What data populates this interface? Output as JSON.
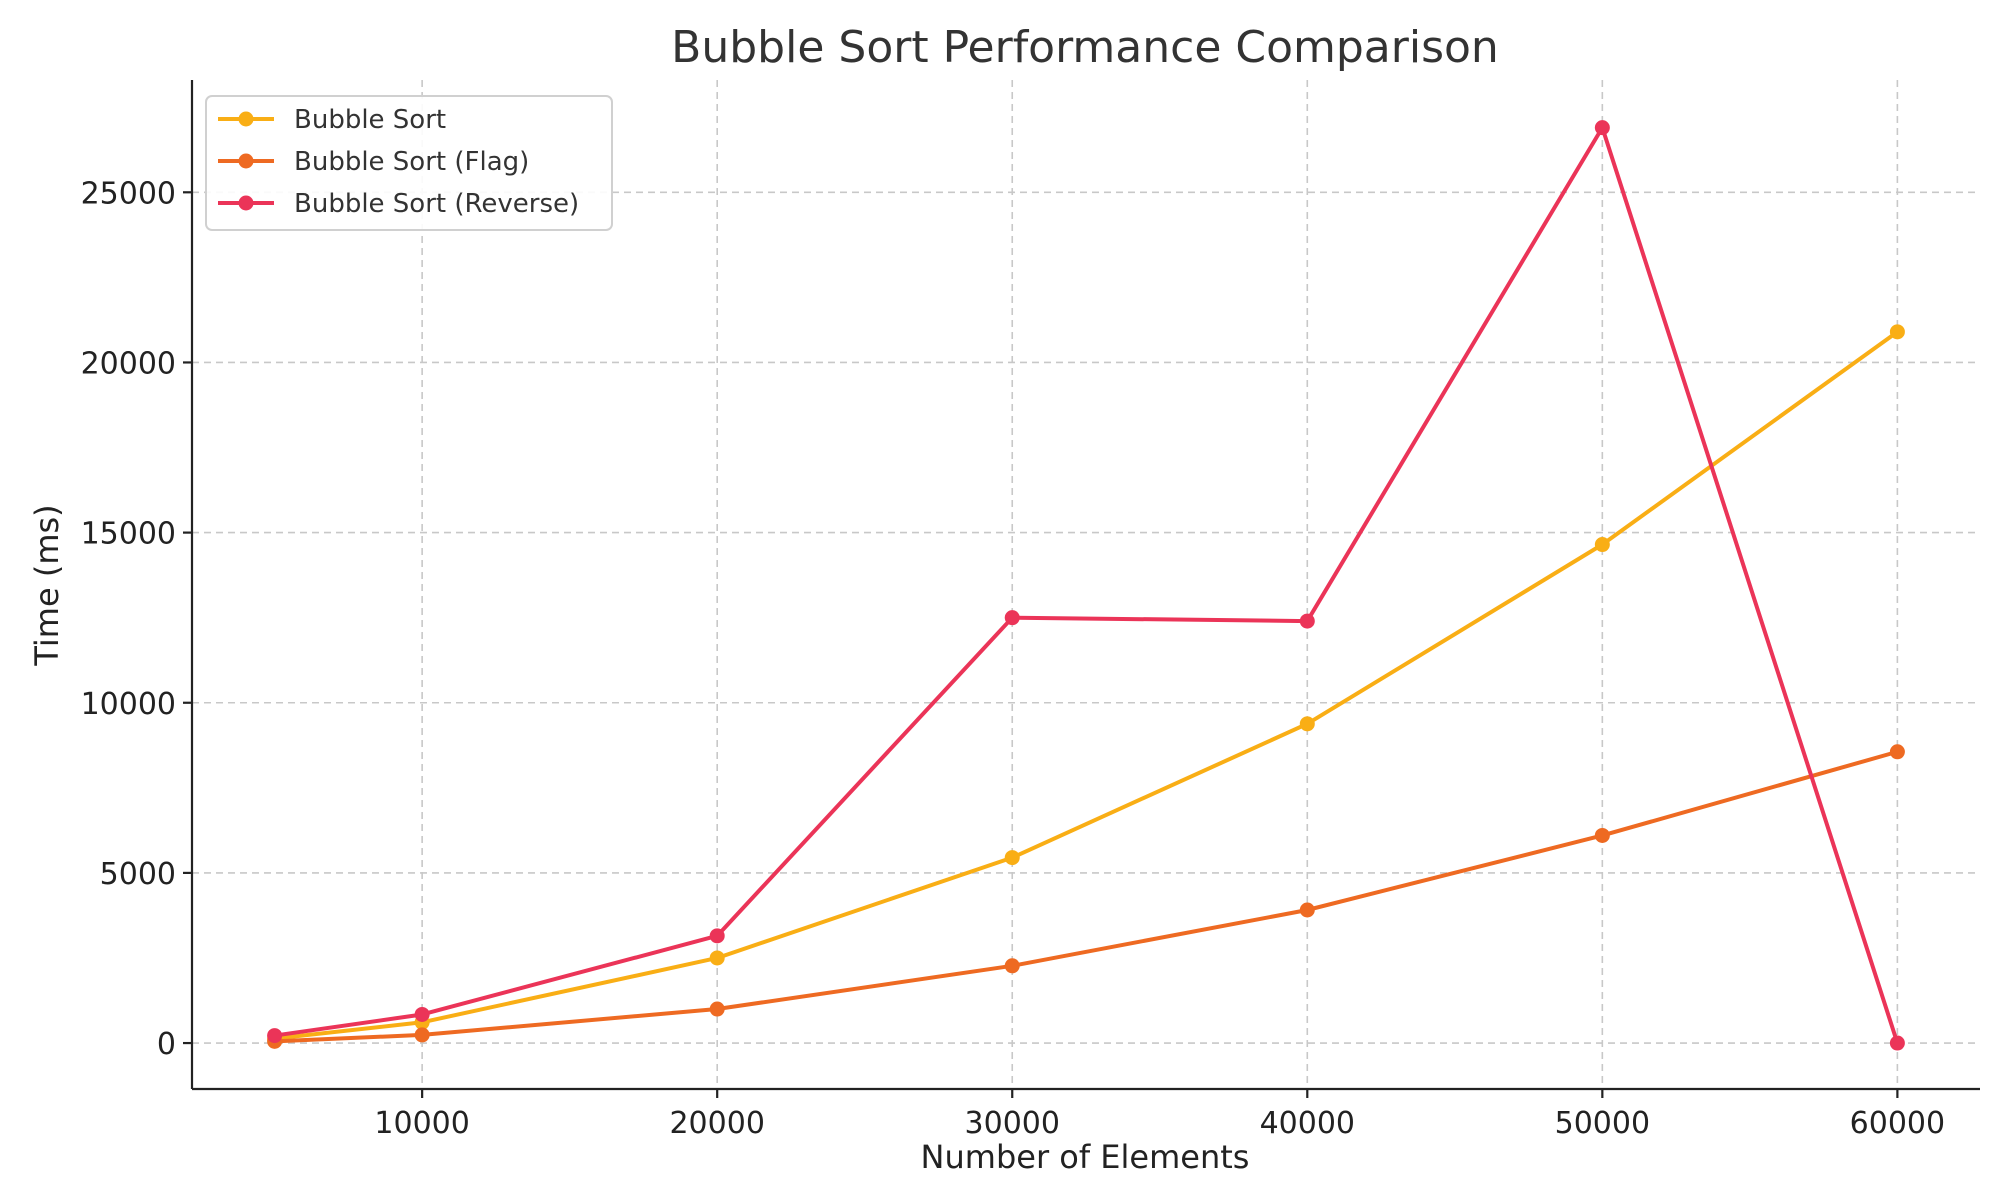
{
  "chart_data": {
    "type": "line",
    "title": "Bubble Sort Performance Comparison",
    "xlabel": "Number of Elements",
    "ylabel": "Time (ms)",
    "x": [
      5000,
      10000,
      20000,
      30000,
      40000,
      50000,
      60000
    ],
    "xlim": [
      2200,
      62800
    ],
    "ylim": [
      -1350,
      28300
    ],
    "xticks": [
      10000,
      20000,
      30000,
      40000,
      50000,
      60000
    ],
    "yticks": [
      0,
      5000,
      10000,
      15000,
      20000,
      25000
    ],
    "grid": true,
    "legend_position": "top-left",
    "series": [
      {
        "name": "Bubble Sort",
        "color": "#F9AE15",
        "values": [
          130,
          610,
          2500,
          5450,
          9380,
          14650,
          20900
        ]
      },
      {
        "name": "Bubble Sort (Flag)",
        "color": "#EE6A22",
        "values": [
          50,
          240,
          1000,
          2270,
          3910,
          6100,
          8560
        ]
      },
      {
        "name": "Bubble Sort (Reverse)",
        "color": "#EB3458",
        "values": [
          220,
          840,
          3150,
          12500,
          12400,
          26900,
          0
        ]
      }
    ]
  }
}
